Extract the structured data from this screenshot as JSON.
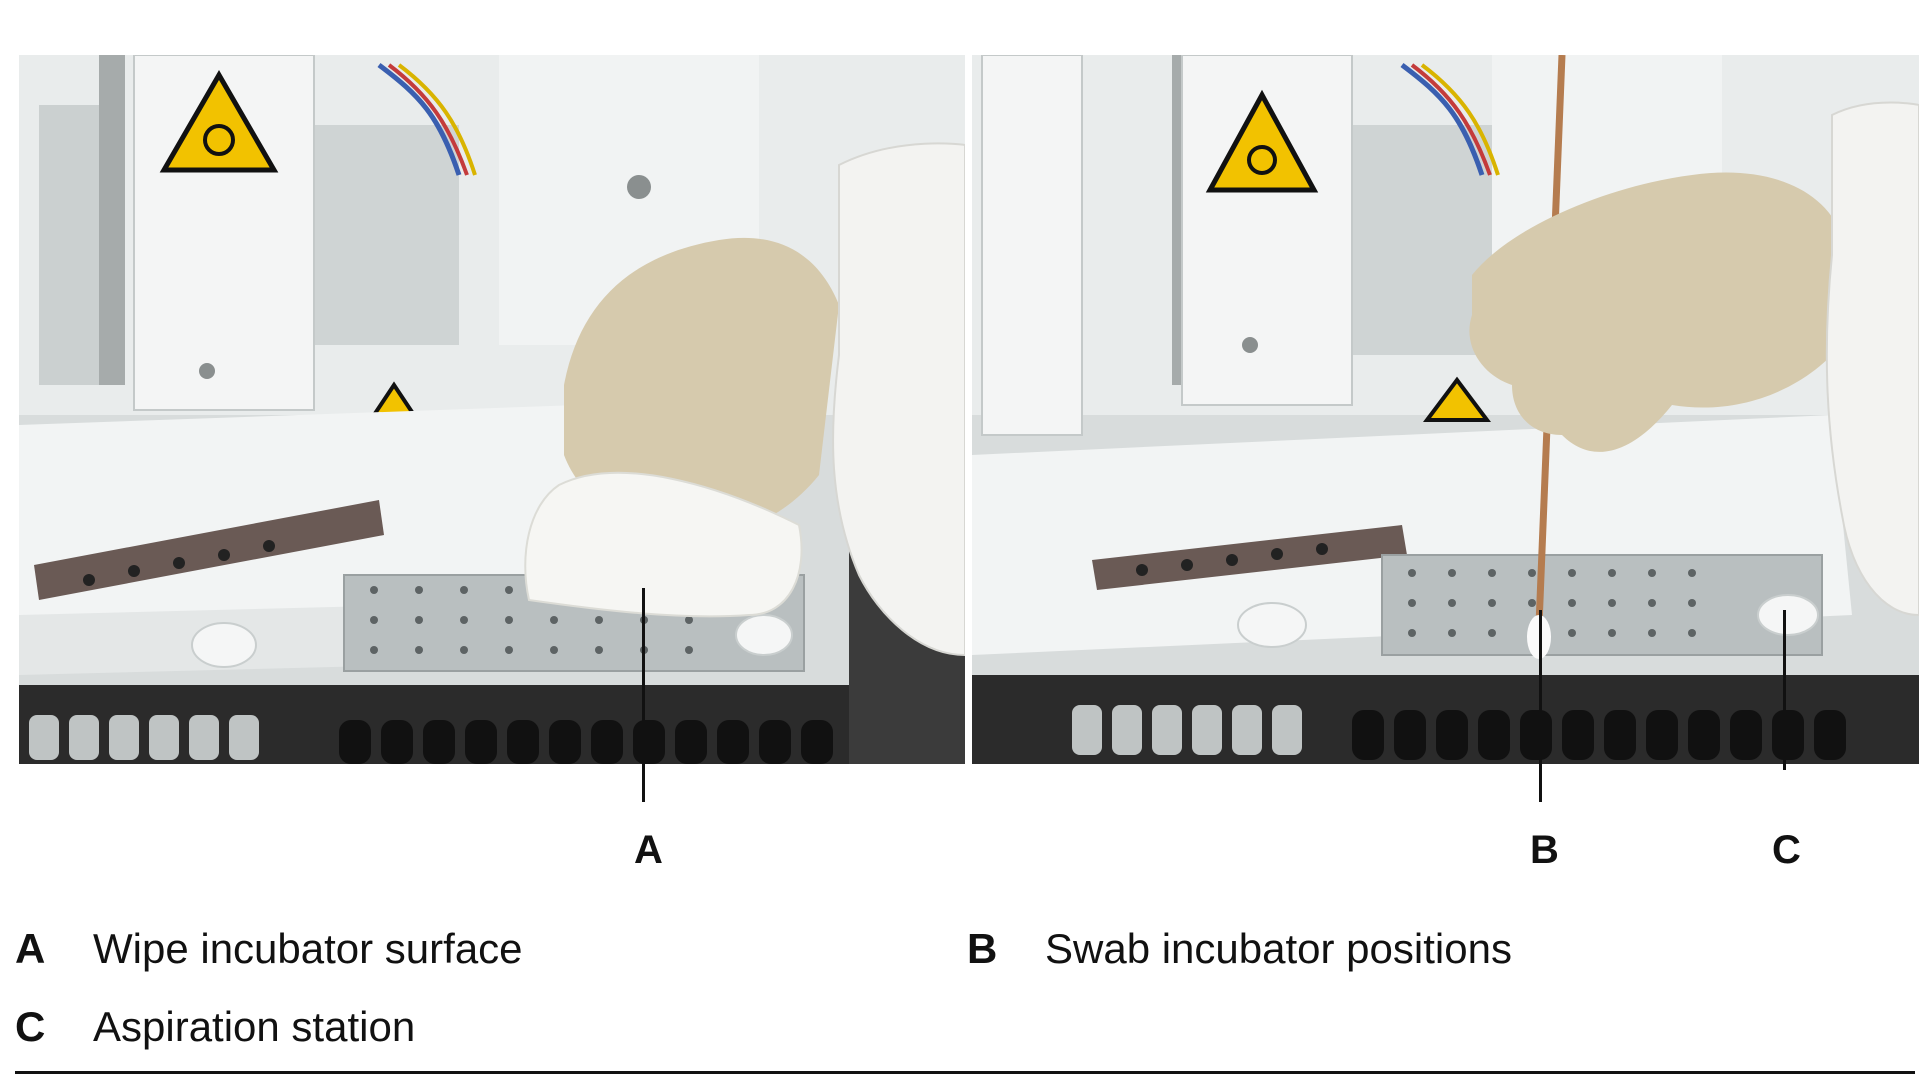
{
  "callouts": {
    "a": "A",
    "b": "B",
    "c": "C"
  },
  "legend": [
    {
      "key": "A",
      "text": "Wipe incubator surface"
    },
    {
      "key": "B",
      "text": "Swab incubator positions"
    },
    {
      "key": "C",
      "text": "Aspiration station"
    }
  ],
  "colors": {
    "warning_yellow": "#f2c200",
    "glove": "#d9cdb0",
    "instrument_white": "#e8ecec",
    "rule": "#111111"
  }
}
